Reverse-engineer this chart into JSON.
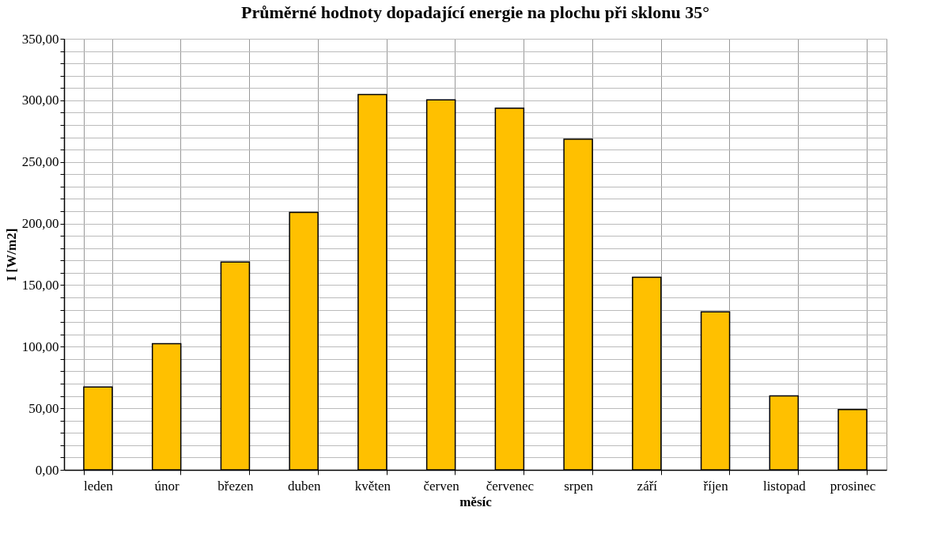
{
  "chart_data": {
    "type": "bar",
    "title": "Průměrné hodnoty dopadající energie na plochu při sklonu 35°",
    "xlabel": "měsíc",
    "ylabel": "I [W/m2]",
    "categories": [
      "leden",
      "únor",
      "březen",
      "duben",
      "květen",
      "červen",
      "červenec",
      "srpen",
      "září",
      "říjen",
      "listopad",
      "prosinec"
    ],
    "values": [
      67.3,
      102.4,
      168.8,
      209,
      304.8,
      300.4,
      293.6,
      268.5,
      156.4,
      128.2,
      60,
      48.9
    ],
    "color": "#ffc000",
    "ylim": [
      0,
      350
    ],
    "yticks": [
      {
        "value": 0,
        "label": "0,00"
      },
      {
        "value": 10,
        "label": null
      },
      {
        "value": 20,
        "label": null
      },
      {
        "value": 30,
        "label": null
      },
      {
        "value": 40,
        "label": null
      },
      {
        "value": 50,
        "label": "50,00"
      },
      {
        "value": 60,
        "label": null
      },
      {
        "value": 70,
        "label": null
      },
      {
        "value": 80,
        "label": null
      },
      {
        "value": 90,
        "label": null
      },
      {
        "value": 100,
        "label": "100,00"
      },
      {
        "value": 110,
        "label": null
      },
      {
        "value": 120,
        "label": null
      },
      {
        "value": 130,
        "label": null
      },
      {
        "value": 140,
        "label": null
      },
      {
        "value": 150,
        "label": "150,00"
      },
      {
        "value": 160,
        "label": null
      },
      {
        "value": 170,
        "label": null
      },
      {
        "value": 180,
        "label": null
      },
      {
        "value": 190,
        "label": null
      },
      {
        "value": 200,
        "label": "200,00"
      },
      {
        "value": 210,
        "label": null
      },
      {
        "value": 220,
        "label": null
      },
      {
        "value": 230,
        "label": null
      },
      {
        "value": 240,
        "label": null
      },
      {
        "value": 250,
        "label": "250,00"
      },
      {
        "value": 260,
        "label": null
      },
      {
        "value": 270,
        "label": null
      },
      {
        "value": 280,
        "label": null
      },
      {
        "value": 290,
        "label": null
      },
      {
        "value": 300,
        "label": "300,00"
      },
      {
        "value": 310,
        "label": null
      },
      {
        "value": 320,
        "label": null
      },
      {
        "value": 330,
        "label": null
      },
      {
        "value": 340,
        "label": null
      },
      {
        "value": 350,
        "label": "350,00"
      }
    ],
    "grid": true
  }
}
